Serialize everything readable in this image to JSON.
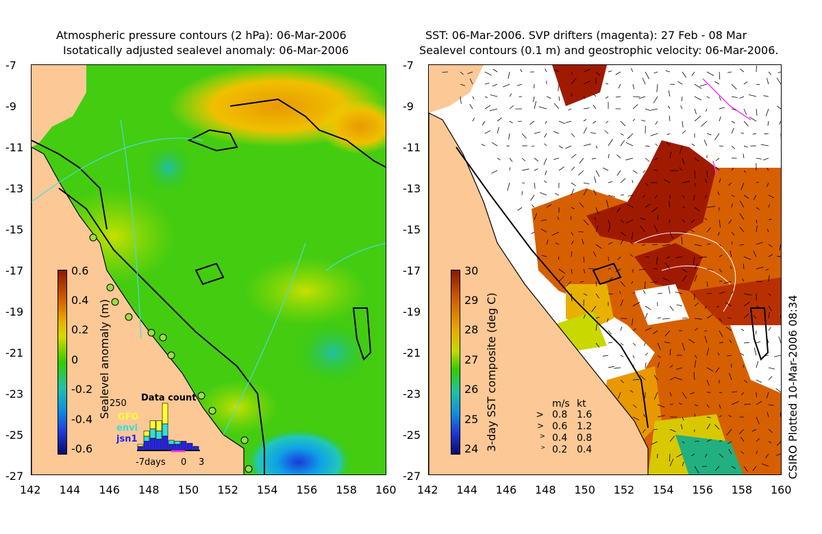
{
  "left_panel": {
    "title_line1": "Atmospheric pressure contours (2 hPa): 06-Mar-2006",
    "title_line2": "Isotatically adjusted sealevel anomaly: 06-Mar-2006",
    "colorbar": {
      "label": "Sealevel anomaly (m)",
      "ticks": [
        "0.6",
        "0.4",
        "0.2",
        "0",
        "-0.2",
        "-0.4",
        "-0.6"
      ]
    },
    "data_count": {
      "title": "Data count",
      "y_label": "250",
      "legend": [
        {
          "name": "GFO",
          "color": "#ffff33"
        },
        {
          "name": "envi",
          "color": "#33dddd"
        },
        {
          "name": "jsn1",
          "color": "#2222ee"
        }
      ],
      "x_labels": [
        "-7days",
        "0",
        "3"
      ],
      "bars": [
        {
          "jsn1": 20,
          "envi": 0,
          "gfo": 10
        },
        {
          "jsn1": 45,
          "envi": 25,
          "gfo": 25
        },
        {
          "jsn1": 60,
          "envi": 45,
          "gfo": 40
        },
        {
          "jsn1": 55,
          "envi": 40,
          "gfo": 50
        },
        {
          "jsn1": 70,
          "envi": 60,
          "gfo": 100
        },
        {
          "jsn1": 30,
          "envi": 20,
          "gfo": 0
        },
        {
          "jsn1": 30,
          "envi": 15,
          "gfo": 0
        },
        {
          "jsn1": 45,
          "envi": 0,
          "gfo": 0
        },
        {
          "jsn1": 35,
          "envi": 0,
          "gfo": 0
        },
        {
          "jsn1": 20,
          "envi": 0,
          "gfo": 0
        }
      ]
    }
  },
  "right_panel": {
    "title_line1": "SST: 06-Mar-2006. SVP drifters (magenta): 27 Feb - 08 Mar",
    "title_line2": "Sealevel contours (0.1 m) and geostrophic velocity: 06-Mar-2006.",
    "colorbar": {
      "label": "3-day SST composite (deg C)",
      "ticks": [
        "30",
        "29",
        "28",
        "27",
        "26",
        "25",
        "24"
      ]
    },
    "velocity_legend": {
      "header_ms": "m/s",
      "header_kt": "kt",
      "rows": [
        {
          "ms": "0.8",
          "kt": "1.6"
        },
        {
          "ms": "0.6",
          "kt": "1.2"
        },
        {
          "ms": "0.4",
          "kt": "0.8"
        },
        {
          "ms": "0.2",
          "kt": "0.4"
        }
      ]
    }
  },
  "axes": {
    "y_ticks": [
      "-7",
      "-9",
      "-11",
      "-13",
      "-15",
      "-17",
      "-19",
      "-21",
      "-23",
      "-25",
      "-27"
    ],
    "x_ticks": [
      "142",
      "144",
      "146",
      "148",
      "150",
      "152",
      "154",
      "156",
      "158",
      "160"
    ]
  },
  "credit": "CSIRO Plotted 10-Mar-2006 08:34",
  "colors": {
    "land": "#fcc896",
    "sla_green": "#33cc00",
    "sst_dark_red": "#a01a00",
    "sst_orange": "#d45a00"
  }
}
